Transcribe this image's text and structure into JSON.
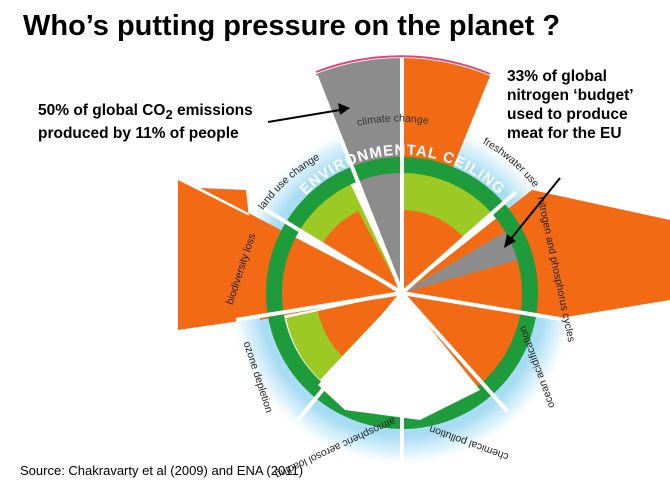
{
  "title": "Who’s putting pressure on the planet ?",
  "ring_label": "ENVIRONMENTAL CEILING",
  "boundaries": [
    {
      "key": "climate",
      "label": "climate change",
      "status": "exceeded"
    },
    {
      "key": "freshwater",
      "label": "freshwater use",
      "status": "within"
    },
    {
      "key": "nitrogen",
      "label": "nitrogen and phosphorus cycles",
      "status": "exceeded"
    },
    {
      "key": "ocean",
      "label": "ocean acidification",
      "status": "within"
    },
    {
      "key": "chemical",
      "label": "chemical pollution",
      "status": "not-quantified"
    },
    {
      "key": "aerosol",
      "label": "atmospheric aerosol loading",
      "status": "not-quantified"
    },
    {
      "key": "ozone",
      "label": "ozone depletion",
      "status": "within"
    },
    {
      "key": "biodiversity",
      "label": "biodiversity loss",
      "status": "exceeded"
    },
    {
      "key": "landuse",
      "label": "land use change",
      "status": "within"
    }
  ],
  "callouts": {
    "co2": {
      "text_before": "50% of global CO",
      "subscript": "2",
      "text_after": " emissions produced by 11% of people"
    },
    "nitrogen": {
      "text": "33% of global nitrogen ‘budget’ used to produce meat for the EU"
    }
  },
  "source": "Source: Chakravarty et al (2009) and ENA (2011)",
  "colors": {
    "orange": "#F26A14",
    "lime": "#9DC925",
    "ring_green": "#1E9B3A",
    "grey": "#8C8C8C",
    "glow": "#9ED8F2",
    "pink": "#E0457B"
  }
}
